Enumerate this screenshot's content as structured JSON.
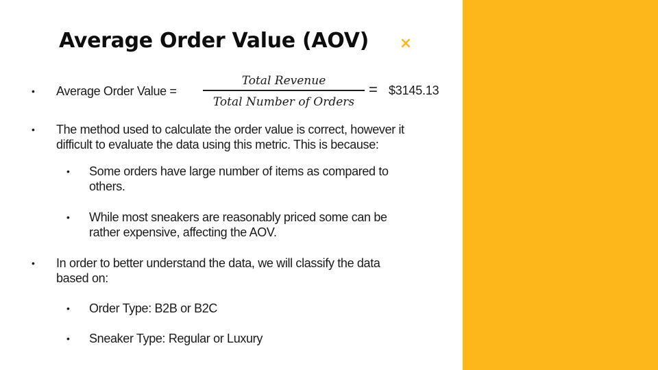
{
  "slide": {
    "title": "Average Order Value (AOV)",
    "close_glyph": "×",
    "accent_color": "#FDB71A"
  },
  "formula": {
    "label": "Average Order Value =",
    "numerator": "Total Revenue",
    "denominator": "Total Number of Orders",
    "equals": "=",
    "result": "$3145.13"
  },
  "bullets": {
    "b2_line1": "The method used to calculate the order value is correct, however it",
    "b2_line2": "difficult to evaluate the data using this metric. This is because:",
    "sub1_line1": "Some orders have large number of items as compared to",
    "sub1_line2": "others.",
    "sub2_line1": "While most sneakers are reasonably priced some can be",
    "sub2_line2": "rather expensive, affecting the AOV.",
    "b3_line1": "In order to better understand the data, we will classify the data",
    "b3_line2": "based on:",
    "sub3": "Order Type: B2B or B2C",
    "sub4": "Sneaker Type: Regular or Luxury",
    "bullet_glyph": "•"
  }
}
